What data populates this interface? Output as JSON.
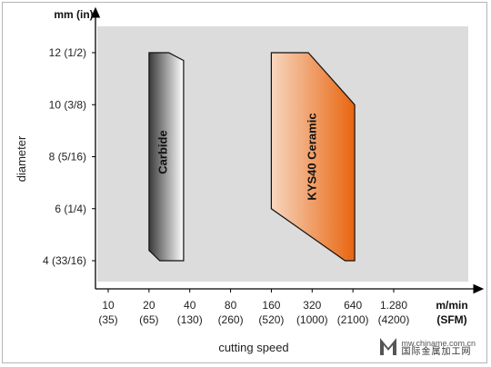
{
  "chart_data": {
    "type": "area",
    "x_axis": {
      "title": "cutting speed",
      "unit_label": "m/min",
      "unit_label_alt": "(SFM)",
      "scale": "log",
      "ticks": [
        {
          "value": 10,
          "label": "10",
          "label_alt": "(35)"
        },
        {
          "value": 20,
          "label": "20",
          "label_alt": "(65)"
        },
        {
          "value": 40,
          "label": "40",
          "label_alt": "(130)"
        },
        {
          "value": 80,
          "label": "80",
          "label_alt": "(260)"
        },
        {
          "value": 160,
          "label": "160",
          "label_alt": "(520)"
        },
        {
          "value": 320,
          "label": "320",
          "label_alt": "(1000)"
        },
        {
          "value": 640,
          "label": "640",
          "label_alt": "(2100)"
        },
        {
          "value": 1280,
          "label": "1.280",
          "label_alt": "(4200)"
        }
      ]
    },
    "y_axis": {
      "title": "diameter",
      "unit_label": "mm (in)",
      "ticks": [
        {
          "value": 4,
          "label": "4 (33/16)"
        },
        {
          "value": 6,
          "label": "6 (1/4)"
        },
        {
          "value": 8,
          "label": "8 (5/16)"
        },
        {
          "value": 10,
          "label": "10 (3/8)"
        },
        {
          "value": 12,
          "label": "12 (1/2)"
        }
      ]
    },
    "series": [
      {
        "name": "Carbide",
        "color_start": "#3a3a3a",
        "color_end": "#ffffff",
        "polygon": [
          {
            "x": 20,
            "y": 12
          },
          {
            "x": 28,
            "y": 12
          },
          {
            "x": 36,
            "y": 11.7
          },
          {
            "x": 36,
            "y": 4
          },
          {
            "x": 24,
            "y": 4
          },
          {
            "x": 20,
            "y": 4.4
          }
        ]
      },
      {
        "name": "KYS40 Ceramic",
        "color_start": "#f7d6bf",
        "color_end": "#e8650f",
        "polygon": [
          {
            "x": 160,
            "y": 12
          },
          {
            "x": 300,
            "y": 12
          },
          {
            "x": 660,
            "y": 10
          },
          {
            "x": 660,
            "y": 4
          },
          {
            "x": 560,
            "y": 4
          },
          {
            "x": 160,
            "y": 6
          }
        ]
      }
    ],
    "background_color": "#dcdcdc",
    "grid": false
  },
  "watermark": {
    "url": "mw.chiname.com.cn",
    "name": "国际金属加工网"
  }
}
